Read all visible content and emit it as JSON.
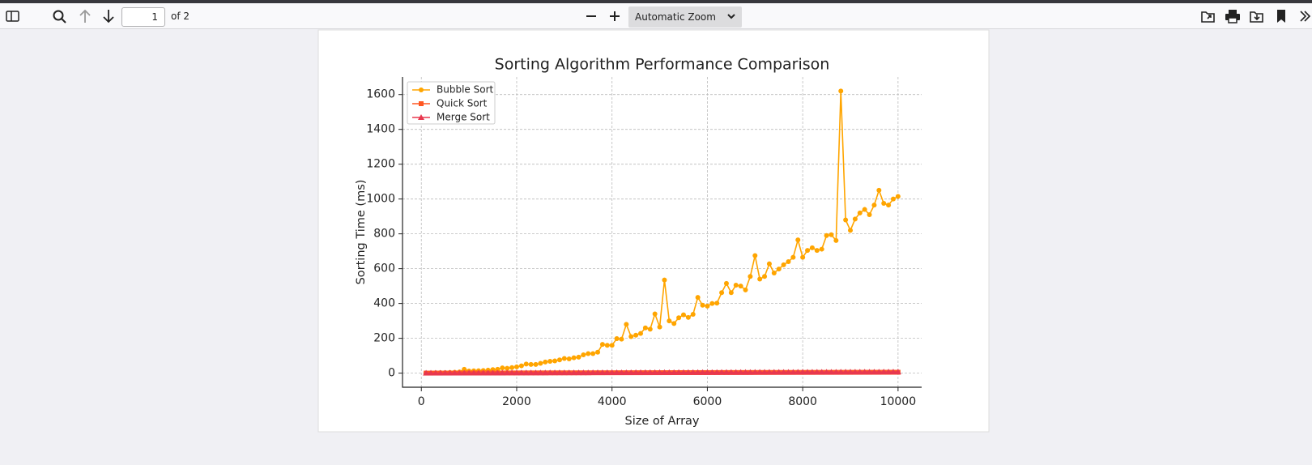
{
  "toolbar": {
    "page_number": "1",
    "page_count": "of 2",
    "zoom": "Automatic Zoom"
  },
  "chart_data": {
    "type": "line",
    "title": "Sorting Algorithm Performance Comparison",
    "x_label": "Size of Array",
    "y_label": "Sorting Time (ms)",
    "x": [
      100,
      200,
      300,
      400,
      500,
      600,
      700,
      800,
      900,
      1000,
      1100,
      1200,
      1300,
      1400,
      1500,
      1600,
      1700,
      1800,
      1900,
      2000,
      2100,
      2200,
      2300,
      2400,
      2500,
      2600,
      2700,
      2800,
      2900,
      3000,
      3100,
      3200,
      3300,
      3400,
      3500,
      3600,
      3700,
      3800,
      3900,
      4000,
      4100,
      4200,
      4300,
      4400,
      4500,
      4600,
      4700,
      4800,
      4900,
      5000,
      5100,
      5200,
      5300,
      5400,
      5500,
      5600,
      5700,
      5800,
      5900,
      6000,
      6100,
      6200,
      6300,
      6400,
      6500,
      6600,
      6700,
      6800,
      6900,
      7000,
      7100,
      7200,
      7300,
      7400,
      7500,
      7600,
      7700,
      7800,
      7900,
      8000,
      8100,
      8200,
      8300,
      8400,
      8500,
      8600,
      8700,
      8800,
      8900,
      9000,
      9100,
      9200,
      9300,
      9400,
      9500,
      9600,
      9700,
      9800,
      9900,
      10000
    ],
    "series": [
      {
        "name": "Bubble Sort",
        "color": "#ffa500",
        "marker": "circle",
        "values": [
          1,
          1,
          2,
          3,
          3,
          4,
          5,
          7,
          22,
          12,
          13,
          14,
          15,
          17,
          20,
          22,
          30,
          28,
          32,
          36,
          42,
          52,
          50,
          50,
          56,
          64,
          68,
          70,
          76,
          84,
          82,
          88,
          92,
          105,
          112,
          112,
          120,
          165,
          160,
          160,
          198,
          195,
          280,
          210,
          218,
          228,
          260,
          252,
          340,
          265,
          535,
          300,
          285,
          318,
          335,
          320,
          338,
          435,
          390,
          385,
          400,
          402,
          462,
          515,
          462,
          505,
          500,
          478,
          555,
          675,
          540,
          555,
          628,
          575,
          598,
          622,
          640,
          665,
          765,
          665,
          705,
          720,
          705,
          712,
          790,
          795,
          762,
          1620,
          880,
          820,
          885,
          920,
          940,
          910,
          965,
          1050,
          975,
          965,
          1000,
          1015
        ]
      },
      {
        "name": "Quick Sort",
        "color": "#ff5722",
        "marker": "square",
        "values": [
          0.1,
          0.1,
          0.2,
          0.2,
          0.3,
          0.3,
          0.4,
          0.4,
          0.5,
          0.5,
          0.6,
          0.6,
          0.7,
          0.7,
          0.8,
          0.8,
          0.9,
          0.9,
          1.0,
          1.0,
          1.1,
          1.1,
          1.2,
          1.2,
          1.3,
          1.3,
          1.4,
          1.4,
          1.5,
          1.5,
          1.6,
          1.6,
          1.7,
          1.7,
          1.8,
          1.8,
          1.9,
          1.9,
          2.0,
          2.0,
          2.1,
          2.1,
          2.2,
          2.2,
          2.3,
          2.3,
          2.4,
          2.4,
          2.5,
          2.5,
          2.6,
          2.6,
          2.7,
          2.7,
          2.8,
          2.8,
          2.9,
          2.9,
          3.0,
          3.0,
          3.1,
          3.1,
          3.2,
          3.2,
          3.3,
          3.3,
          3.4,
          3.4,
          3.5,
          3.5,
          3.6,
          3.6,
          3.7,
          3.7,
          3.8,
          3.8,
          3.9,
          3.9,
          4.0,
          4.0,
          4.1,
          4.1,
          4.2,
          4.2,
          4.3,
          4.3,
          4.4,
          4.4,
          4.5,
          4.5,
          4.6,
          4.6,
          4.7,
          4.7,
          4.8,
          4.8,
          4.9,
          4.9,
          5.0,
          5.0
        ]
      },
      {
        "name": "Merge Sort",
        "color": "#e8384f",
        "marker": "triangle",
        "values": [
          0.2,
          0.2,
          0.3,
          0.4,
          0.4,
          0.5,
          0.6,
          0.6,
          0.7,
          0.8,
          0.8,
          0.9,
          1.0,
          1.0,
          1.1,
          1.2,
          1.2,
          1.3,
          1.4,
          1.4,
          1.5,
          1.6,
          1.6,
          1.7,
          1.8,
          1.8,
          1.9,
          2.0,
          2.0,
          2.1,
          2.2,
          2.2,
          2.3,
          2.4,
          2.4,
          2.5,
          2.6,
          2.6,
          2.7,
          2.8,
          2.8,
          2.9,
          3.0,
          3.0,
          3.1,
          3.2,
          3.2,
          3.3,
          3.4,
          3.4,
          3.5,
          3.6,
          3.6,
          3.7,
          3.8,
          3.8,
          3.9,
          4.0,
          4.0,
          4.1,
          4.2,
          4.2,
          4.3,
          4.4,
          4.4,
          4.5,
          4.6,
          4.6,
          4.7,
          4.8,
          4.8,
          4.9,
          5.0,
          5.0,
          5.1,
          5.2,
          5.2,
          5.3,
          5.4,
          5.4,
          5.5,
          5.6,
          5.6,
          5.7,
          5.8,
          5.8,
          5.9,
          6.0,
          6.0,
          6.1,
          6.2,
          6.2,
          6.3,
          6.4,
          6.4,
          6.5,
          6.6,
          6.6,
          6.7,
          6.8
        ]
      }
    ],
    "xlim": [
      -395,
      10495
    ],
    "xticks": [
      0,
      2000,
      4000,
      6000,
      8000,
      10000
    ],
    "ylim": [
      -81,
      1701
    ],
    "yticks": [
      0,
      200,
      400,
      600,
      800,
      1000,
      1200,
      1400,
      1600
    ],
    "grid": true,
    "legend": "upper-left"
  }
}
